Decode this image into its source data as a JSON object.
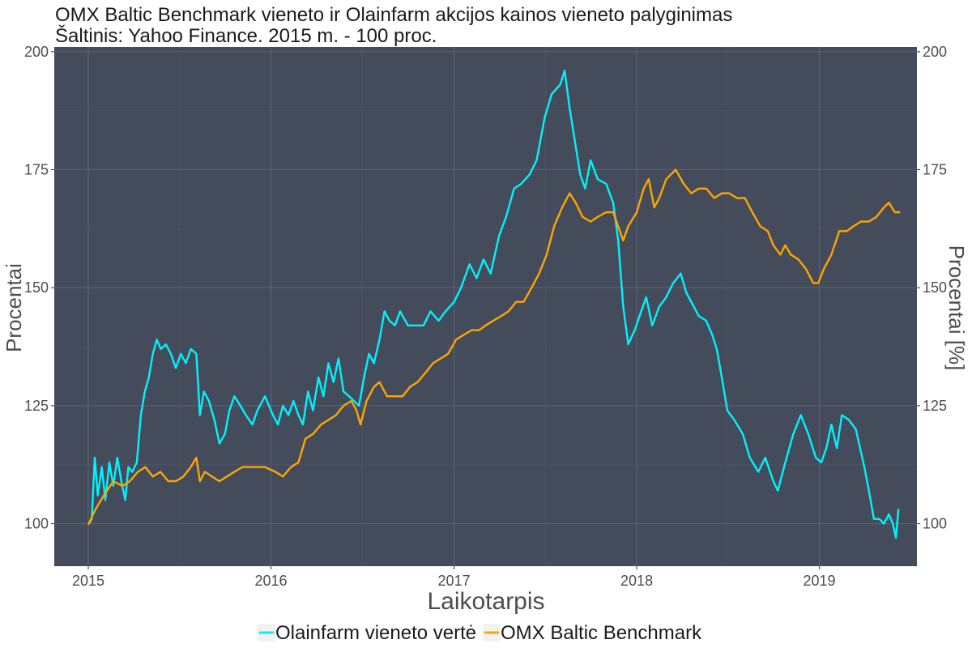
{
  "colors": {
    "panel_bg": "#444b5a",
    "grid_major": "#5c6576",
    "grid_minor": "#4f5667",
    "olainfarm": "#00f2ff",
    "omx": "#ffa500"
  },
  "chart_data": {
    "type": "line",
    "title": "OMX Baltic Benchmark vieneto ir Olainfarm akcijos kainos vieneto palyginimas",
    "subtitle": "Šaltinis: Yahoo Finance. 2015 m. - 100 proc.",
    "xlabel": "Laikotarpis",
    "ylabel_left": "Procentai",
    "ylabel_right": "Procentai [%]",
    "xlim": [
      "2014-10-25",
      "2019-07-15"
    ],
    "ylim": [
      91,
      201
    ],
    "x_ticks": [
      {
        "date": "2015-01-01",
        "label": "2015"
      },
      {
        "date": "2016-01-01",
        "label": "2016"
      },
      {
        "date": "2017-01-01",
        "label": "2017"
      },
      {
        "date": "2018-01-01",
        "label": "2018"
      },
      {
        "date": "2019-01-01",
        "label": "2019"
      }
    ],
    "y_ticks": [
      100,
      125,
      150,
      175,
      200
    ],
    "grid": true,
    "legend_position": "bottom",
    "series": [
      {
        "name": "Olainfarm vieneto vertė",
        "color": "#00f2ff",
        "points": [
          [
            "2015-01-02",
            100
          ],
          [
            "2015-01-08",
            101
          ],
          [
            "2015-01-14",
            114
          ],
          [
            "2015-01-20",
            106
          ],
          [
            "2015-01-28",
            112
          ],
          [
            "2015-02-04",
            105
          ],
          [
            "2015-02-12",
            113
          ],
          [
            "2015-02-20",
            108
          ],
          [
            "2015-02-28",
            114
          ],
          [
            "2015-03-08",
            109
          ],
          [
            "2015-03-16",
            105
          ],
          [
            "2015-03-22",
            112
          ],
          [
            "2015-03-30",
            111
          ],
          [
            "2015-04-08",
            113
          ],
          [
            "2015-04-16",
            123
          ],
          [
            "2015-04-24",
            128
          ],
          [
            "2015-05-02",
            131
          ],
          [
            "2015-05-10",
            136
          ],
          [
            "2015-05-18",
            139
          ],
          [
            "2015-05-26",
            137
          ],
          [
            "2015-06-05",
            138
          ],
          [
            "2015-06-15",
            136
          ],
          [
            "2015-06-25",
            133
          ],
          [
            "2015-07-05",
            136
          ],
          [
            "2015-07-15",
            134
          ],
          [
            "2015-07-25",
            137
          ],
          [
            "2015-08-05",
            136
          ],
          [
            "2015-08-12",
            123
          ],
          [
            "2015-08-20",
            128
          ],
          [
            "2015-08-30",
            126
          ],
          [
            "2015-09-10",
            122
          ],
          [
            "2015-09-20",
            117
          ],
          [
            "2015-10-01",
            119
          ],
          [
            "2015-10-10",
            124
          ],
          [
            "2015-10-20",
            127
          ],
          [
            "2015-11-01",
            125
          ],
          [
            "2015-11-12",
            123
          ],
          [
            "2015-11-25",
            121
          ],
          [
            "2015-12-05",
            124
          ],
          [
            "2015-12-20",
            127
          ],
          [
            "2016-01-05",
            123
          ],
          [
            "2016-01-15",
            121
          ],
          [
            "2016-01-25",
            125
          ],
          [
            "2016-02-05",
            123
          ],
          [
            "2016-02-15",
            126
          ],
          [
            "2016-02-25",
            123
          ],
          [
            "2016-03-05",
            121
          ],
          [
            "2016-03-15",
            128
          ],
          [
            "2016-03-25",
            124
          ],
          [
            "2016-04-05",
            131
          ],
          [
            "2016-04-15",
            127
          ],
          [
            "2016-04-25",
            134
          ],
          [
            "2016-05-05",
            130
          ],
          [
            "2016-05-15",
            135
          ],
          [
            "2016-05-25",
            128
          ],
          [
            "2016-06-05",
            127
          ],
          [
            "2016-06-15",
            126
          ],
          [
            "2016-06-25",
            125
          ],
          [
            "2016-07-05",
            131
          ],
          [
            "2016-07-15",
            136
          ],
          [
            "2016-07-25",
            134
          ],
          [
            "2016-08-05",
            139
          ],
          [
            "2016-08-15",
            145
          ],
          [
            "2016-08-25",
            143
          ],
          [
            "2016-09-05",
            142
          ],
          [
            "2016-09-15",
            145
          ],
          [
            "2016-10-01",
            142
          ],
          [
            "2016-10-15",
            142
          ],
          [
            "2016-11-01",
            142
          ],
          [
            "2016-11-15",
            145
          ],
          [
            "2016-12-01",
            143
          ],
          [
            "2016-12-15",
            145
          ],
          [
            "2017-01-01",
            147
          ],
          [
            "2017-01-15",
            150
          ],
          [
            "2017-02-01",
            155
          ],
          [
            "2017-02-15",
            152
          ],
          [
            "2017-03-01",
            156
          ],
          [
            "2017-03-15",
            153
          ],
          [
            "2017-04-01",
            161
          ],
          [
            "2017-04-15",
            165
          ],
          [
            "2017-05-01",
            171
          ],
          [
            "2017-05-15",
            172
          ],
          [
            "2017-06-01",
            174
          ],
          [
            "2017-06-15",
            177
          ],
          [
            "2017-07-01",
            186
          ],
          [
            "2017-07-15",
            191
          ],
          [
            "2017-08-01",
            193
          ],
          [
            "2017-08-10",
            196
          ],
          [
            "2017-08-20",
            188
          ],
          [
            "2017-09-01",
            180
          ],
          [
            "2017-09-10",
            174
          ],
          [
            "2017-09-20",
            171
          ],
          [
            "2017-10-01",
            177
          ],
          [
            "2017-10-15",
            173
          ],
          [
            "2017-11-01",
            172
          ],
          [
            "2017-11-15",
            168
          ],
          [
            "2017-11-25",
            160
          ],
          [
            "2017-12-05",
            146
          ],
          [
            "2017-12-15",
            138
          ],
          [
            "2017-12-28",
            141
          ],
          [
            "2018-01-10",
            145
          ],
          [
            "2018-01-20",
            148
          ],
          [
            "2018-02-01",
            142
          ],
          [
            "2018-02-15",
            146
          ],
          [
            "2018-03-01",
            148
          ],
          [
            "2018-03-15",
            151
          ],
          [
            "2018-03-30",
            153
          ],
          [
            "2018-04-10",
            149
          ],
          [
            "2018-04-25",
            146
          ],
          [
            "2018-05-05",
            144
          ],
          [
            "2018-05-20",
            143
          ],
          [
            "2018-06-01",
            140
          ],
          [
            "2018-06-10",
            137
          ],
          [
            "2018-06-20",
            131
          ],
          [
            "2018-07-01",
            124
          ],
          [
            "2018-07-15",
            122
          ],
          [
            "2018-08-01",
            119
          ],
          [
            "2018-08-15",
            114
          ],
          [
            "2018-09-01",
            111
          ],
          [
            "2018-09-15",
            114
          ],
          [
            "2018-10-01",
            109
          ],
          [
            "2018-10-10",
            107
          ],
          [
            "2018-10-25",
            113
          ],
          [
            "2018-11-10",
            119
          ],
          [
            "2018-11-25",
            123
          ],
          [
            "2018-12-10",
            119
          ],
          [
            "2018-12-25",
            114
          ],
          [
            "2019-01-05",
            113
          ],
          [
            "2019-01-15",
            116
          ],
          [
            "2019-01-25",
            121
          ],
          [
            "2019-02-05",
            116
          ],
          [
            "2019-02-15",
            123
          ],
          [
            "2019-03-01",
            122
          ],
          [
            "2019-03-15",
            120
          ],
          [
            "2019-04-01",
            112
          ],
          [
            "2019-04-10",
            107
          ],
          [
            "2019-04-20",
            101
          ],
          [
            "2019-05-01",
            101
          ],
          [
            "2019-05-10",
            100
          ],
          [
            "2019-05-20",
            102
          ],
          [
            "2019-05-28",
            100
          ],
          [
            "2019-06-03",
            97
          ],
          [
            "2019-06-08",
            103
          ]
        ]
      },
      {
        "name": "OMX Baltic Benchmark",
        "color": "#ffa500",
        "points": [
          [
            "2015-01-02",
            100
          ],
          [
            "2015-01-15",
            103
          ],
          [
            "2015-02-01",
            106
          ],
          [
            "2015-02-20",
            109
          ],
          [
            "2015-03-10",
            108
          ],
          [
            "2015-03-25",
            109
          ],
          [
            "2015-04-10",
            111
          ],
          [
            "2015-04-25",
            112
          ],
          [
            "2015-05-10",
            110
          ],
          [
            "2015-05-25",
            111
          ],
          [
            "2015-06-10",
            109
          ],
          [
            "2015-06-25",
            109
          ],
          [
            "2015-07-10",
            110
          ],
          [
            "2015-07-25",
            112
          ],
          [
            "2015-08-05",
            114
          ],
          [
            "2015-08-12",
            109
          ],
          [
            "2015-08-22",
            111
          ],
          [
            "2015-09-05",
            110
          ],
          [
            "2015-09-20",
            109
          ],
          [
            "2015-10-05",
            110
          ],
          [
            "2015-10-20",
            111
          ],
          [
            "2015-11-05",
            112
          ],
          [
            "2015-11-20",
            112
          ],
          [
            "2015-12-05",
            112
          ],
          [
            "2015-12-20",
            112
          ],
          [
            "2016-01-10",
            111
          ],
          [
            "2016-01-25",
            110
          ],
          [
            "2016-02-10",
            112
          ],
          [
            "2016-02-25",
            113
          ],
          [
            "2016-03-10",
            118
          ],
          [
            "2016-03-25",
            119
          ],
          [
            "2016-04-10",
            121
          ],
          [
            "2016-04-25",
            122
          ],
          [
            "2016-05-10",
            123
          ],
          [
            "2016-05-25",
            125
          ],
          [
            "2016-06-10",
            126
          ],
          [
            "2016-06-20",
            124
          ],
          [
            "2016-06-28",
            121
          ],
          [
            "2016-07-10",
            126
          ],
          [
            "2016-07-25",
            129
          ],
          [
            "2016-08-05",
            130
          ],
          [
            "2016-08-20",
            127
          ],
          [
            "2016-09-05",
            127
          ],
          [
            "2016-09-20",
            127
          ],
          [
            "2016-10-05",
            129
          ],
          [
            "2016-10-20",
            130
          ],
          [
            "2016-11-05",
            132
          ],
          [
            "2016-11-20",
            134
          ],
          [
            "2016-12-05",
            135
          ],
          [
            "2016-12-20",
            136
          ],
          [
            "2017-01-05",
            139
          ],
          [
            "2017-01-20",
            140
          ],
          [
            "2017-02-05",
            141
          ],
          [
            "2017-02-20",
            141
          ],
          [
            "2017-03-05",
            142
          ],
          [
            "2017-03-20",
            143
          ],
          [
            "2017-04-05",
            144
          ],
          [
            "2017-04-20",
            145
          ],
          [
            "2017-05-05",
            147
          ],
          [
            "2017-05-20",
            147
          ],
          [
            "2017-06-05",
            150
          ],
          [
            "2017-06-20",
            153
          ],
          [
            "2017-07-05",
            157
          ],
          [
            "2017-07-20",
            163
          ],
          [
            "2017-08-05",
            167
          ],
          [
            "2017-08-20",
            170
          ],
          [
            "2017-09-01",
            168
          ],
          [
            "2017-09-15",
            165
          ],
          [
            "2017-10-01",
            164
          ],
          [
            "2017-10-15",
            165
          ],
          [
            "2017-11-01",
            166
          ],
          [
            "2017-11-15",
            166
          ],
          [
            "2017-11-25",
            163
          ],
          [
            "2017-12-05",
            160
          ],
          [
            "2017-12-15",
            163
          ],
          [
            "2018-01-01",
            166
          ],
          [
            "2018-01-15",
            171
          ],
          [
            "2018-01-25",
            173
          ],
          [
            "2018-02-05",
            167
          ],
          [
            "2018-02-15",
            169
          ],
          [
            "2018-03-01",
            173
          ],
          [
            "2018-03-20",
            175
          ],
          [
            "2018-04-05",
            172
          ],
          [
            "2018-04-20",
            170
          ],
          [
            "2018-05-05",
            171
          ],
          [
            "2018-05-20",
            171
          ],
          [
            "2018-06-05",
            169
          ],
          [
            "2018-06-20",
            170
          ],
          [
            "2018-07-05",
            170
          ],
          [
            "2018-07-20",
            169
          ],
          [
            "2018-08-05",
            169
          ],
          [
            "2018-08-20",
            166
          ],
          [
            "2018-09-05",
            163
          ],
          [
            "2018-09-20",
            162
          ],
          [
            "2018-10-01",
            159
          ],
          [
            "2018-10-15",
            157
          ],
          [
            "2018-10-25",
            159
          ],
          [
            "2018-11-05",
            157
          ],
          [
            "2018-11-20",
            156
          ],
          [
            "2018-12-05",
            154
          ],
          [
            "2018-12-20",
            151
          ],
          [
            "2018-12-30",
            151
          ],
          [
            "2019-01-10",
            154
          ],
          [
            "2019-01-25",
            157
          ],
          [
            "2019-02-10",
            162
          ],
          [
            "2019-02-25",
            162
          ],
          [
            "2019-03-10",
            163
          ],
          [
            "2019-03-25",
            164
          ],
          [
            "2019-04-10",
            164
          ],
          [
            "2019-04-25",
            165
          ],
          [
            "2019-05-10",
            167
          ],
          [
            "2019-05-20",
            168
          ],
          [
            "2019-06-01",
            166
          ],
          [
            "2019-06-10",
            166
          ]
        ]
      }
    ]
  }
}
